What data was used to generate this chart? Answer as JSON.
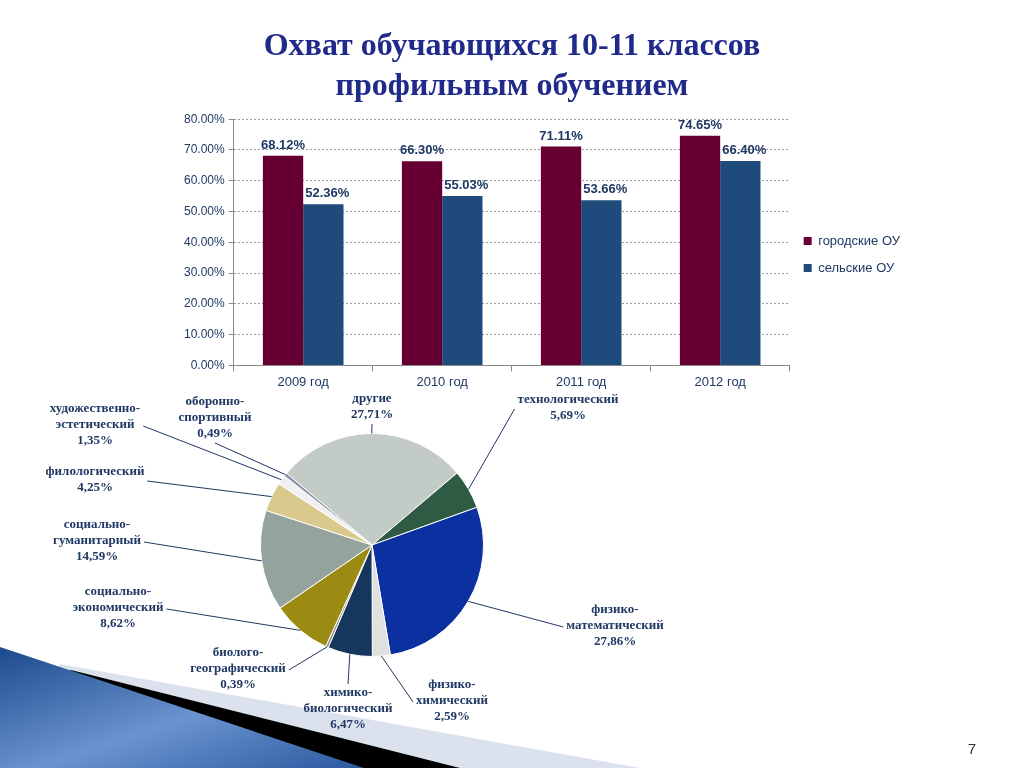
{
  "chart_data": [
    {
      "type": "bar",
      "title": "Охват обучающихся 10-11 классов профильным обучением",
      "categories": [
        "2009 год",
        "2010 год",
        "2011 год",
        "2012 год"
      ],
      "series": [
        {
          "name": "городские ОУ",
          "color": "#660033",
          "values": [
            68.12,
            66.3,
            71.11,
            74.65
          ],
          "value_labels": [
            "68.12%",
            "66.30%",
            "71.11%",
            "74.65%"
          ]
        },
        {
          "name": "сельские ОУ",
          "color": "#1f4a7c",
          "values": [
            52.36,
            55.03,
            53.66,
            66.4
          ],
          "value_labels": [
            "52.36%",
            "55.03%",
            "53.66%",
            "66.40%"
          ]
        }
      ],
      "ylim": [
        0,
        80
      ],
      "yticks": [
        {
          "value": 0,
          "label": "0.00%"
        },
        {
          "value": 10,
          "label": "10.00%"
        },
        {
          "value": 20,
          "label": "20.00%"
        },
        {
          "value": 30,
          "label": "30.00%"
        },
        {
          "value": 40,
          "label": "40.00%"
        },
        {
          "value": 50,
          "label": "50.00%"
        },
        {
          "value": 60,
          "label": "60.00%"
        },
        {
          "value": 70,
          "label": "70.00%"
        },
        {
          "value": 80,
          "label": "80.00%"
        }
      ],
      "grid": "y",
      "legend": "right"
    },
    {
      "type": "pie",
      "categories": [
        "другие",
        "технологический",
        "физико-математический",
        "физико-химический",
        "химико-биологический",
        "биолого-географический",
        "социально-экономический",
        "социально-гуманитарный",
        "филологический",
        "художественно-эстетический",
        "оборонно-спортивный"
      ],
      "values": [
        27.71,
        5.69,
        27.86,
        2.59,
        6.47,
        0.39,
        8.62,
        14.59,
        4.25,
        1.35,
        0.49
      ],
      "value_labels": [
        "27,71%",
        "5,69%",
        "27,86%",
        "2,59%",
        "6,47%",
        "0,39%",
        "8,62%",
        "14,59%",
        "4,25%",
        "1,35%",
        "0,49%"
      ],
      "colors": [
        "#c3cbc6",
        "#2f5b45",
        "#0b30a0",
        "#e0e0e0",
        "#17365d",
        "#8c8c8c",
        "#9b8b13",
        "#94a39d",
        "#d9c98c",
        "#f0f0f0",
        "#8b8fa8"
      ],
      "annotations": [
        "7"
      ]
    }
  ]
}
